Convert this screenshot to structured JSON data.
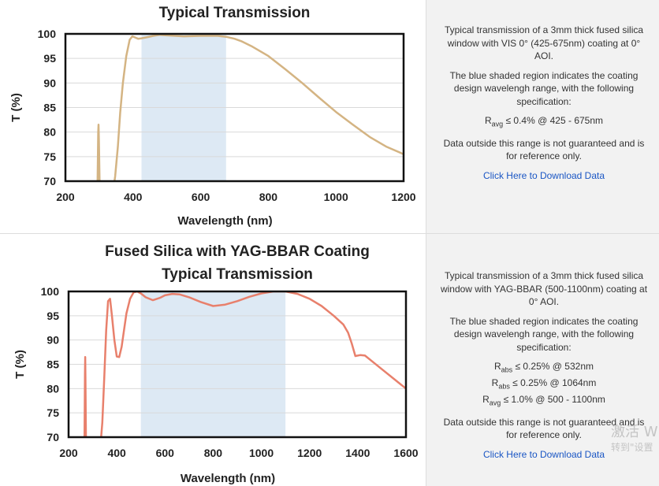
{
  "charts": [
    {
      "title_lines": [
        "Typical Transmission"
      ],
      "text": {
        "intro": "Typical transmission of a 3mm thick fused silica window with VIS 0° (425-675nm) coating at 0° AOI.",
        "shaded": "The blue shaded region indicates the coating design wavelengh range, with the following specification:",
        "specs": [
          {
            "sym": "R",
            "sub": "avg",
            "rest": " ≤ 0.4% @ 425 - 675nm"
          }
        ],
        "disclaimer": "Data outside this range is not guaranteed and is for reference only.",
        "link": "Click Here to Download Data"
      }
    },
    {
      "title_lines": [
        "Fused Silica with YAG-BBAR Coating",
        "Typical Transmission"
      ],
      "text": {
        "intro": "Typical transmission of a 3mm thick fused silica window with YAG-BBAR (500-1100nm) coating at 0° AOI.",
        "shaded": "The blue shaded region indicates the coating design wavelengh range, with the following specification:",
        "specs": [
          {
            "sym": "R",
            "sub": "abs",
            "rest": " ≤ 0.25% @ 532nm"
          },
          {
            "sym": "R",
            "sub": "abs",
            "rest": " ≤ 0.25% @ 1064nm"
          },
          {
            "sym": "R",
            "sub": "avg",
            "rest": " ≤ 1.0% @ 500 - 1100nm"
          }
        ],
        "disclaimer": "Data outside this range is not guaranteed and is for reference only.",
        "link": "Click Here to Download Data"
      }
    }
  ],
  "watermark": {
    "line1": "激活 W",
    "line2": "转到\"设置"
  },
  "chart_data": [
    {
      "type": "line",
      "title": "Typical Transmission",
      "xlabel": "Wavelength (nm)",
      "ylabel": "T (%)",
      "xlim": [
        200,
        1200
      ],
      "ylim": [
        70,
        100
      ],
      "xticks": [
        200,
        400,
        600,
        800,
        1000,
        1200
      ],
      "yticks": [
        70,
        75,
        80,
        85,
        90,
        95,
        100
      ],
      "grid": true,
      "line_color": "#d4b483",
      "shade_color": "#dde9f4",
      "shaded_range": [
        425,
        675
      ],
      "x": [
        295,
        296,
        297,
        298,
        299,
        300,
        301,
        302,
        345,
        347,
        355,
        362,
        370,
        380,
        390,
        398,
        405,
        415,
        425,
        440,
        460,
        480,
        500,
        550,
        600,
        650,
        675,
        700,
        720,
        750,
        800,
        850,
        900,
        950,
        1000,
        1050,
        1100,
        1150,
        1200
      ],
      "y": [
        70,
        75,
        80,
        81.5,
        78,
        74,
        70,
        70,
        70,
        71,
        77,
        84,
        90,
        95.5,
        98.8,
        99.5,
        99.3,
        99,
        99.1,
        99.3,
        99.6,
        99.8,
        99.7,
        99.5,
        99.6,
        99.6,
        99.4,
        99,
        98.5,
        97.5,
        95.5,
        92.8,
        90,
        87,
        84.1,
        81.5,
        79,
        77,
        75.5
      ],
      "segments": [
        [
          0,
          7
        ],
        [
          8,
          38
        ]
      ]
    },
    {
      "type": "line",
      "title": "Fused Silica with YAG-BBAR Coating Typical Transmission",
      "xlabel": "Wavelength (nm)",
      "ylabel": "T (%)",
      "xlim": [
        200,
        1600
      ],
      "ylim": [
        70,
        100
      ],
      "xticks": [
        200,
        400,
        600,
        800,
        1000,
        1200,
        1400,
        1600
      ],
      "yticks": [
        70,
        75,
        80,
        85,
        90,
        95,
        100
      ],
      "grid": true,
      "line_color": "#e8806c",
      "shade_color": "#dde9f4",
      "shaded_range": [
        500,
        1100
      ],
      "x": [
        266,
        267,
        268,
        269,
        270,
        271,
        272,
        335,
        340,
        348,
        356,
        364,
        372,
        380,
        390,
        400,
        410,
        420,
        430,
        440,
        455,
        470,
        485,
        500,
        520,
        550,
        580,
        600,
        630,
        660,
        700,
        750,
        800,
        850,
        900,
        950,
        1000,
        1050,
        1100,
        1150,
        1200,
        1250,
        1300,
        1340,
        1360,
        1375,
        1390,
        1410,
        1430,
        1460,
        1500,
        1550,
        1600
      ],
      "y": [
        70,
        76,
        83,
        86.5,
        82,
        76,
        70,
        70,
        73,
        82,
        92,
        98,
        98.5,
        95,
        90,
        86.6,
        86.5,
        88.6,
        92,
        95.5,
        98.5,
        99.8,
        100,
        99.6,
        98.8,
        98.2,
        98.7,
        99.2,
        99.5,
        99.4,
        98.8,
        97.8,
        97,
        97.3,
        98,
        98.9,
        99.6,
        100,
        100,
        99.5,
        98.5,
        97,
        95,
        93.2,
        91.5,
        89.3,
        86.7,
        86.9,
        86.8,
        85.6,
        84,
        82,
        80
      ],
      "segments": [
        [
          0,
          6
        ],
        [
          7,
          52
        ]
      ]
    }
  ]
}
